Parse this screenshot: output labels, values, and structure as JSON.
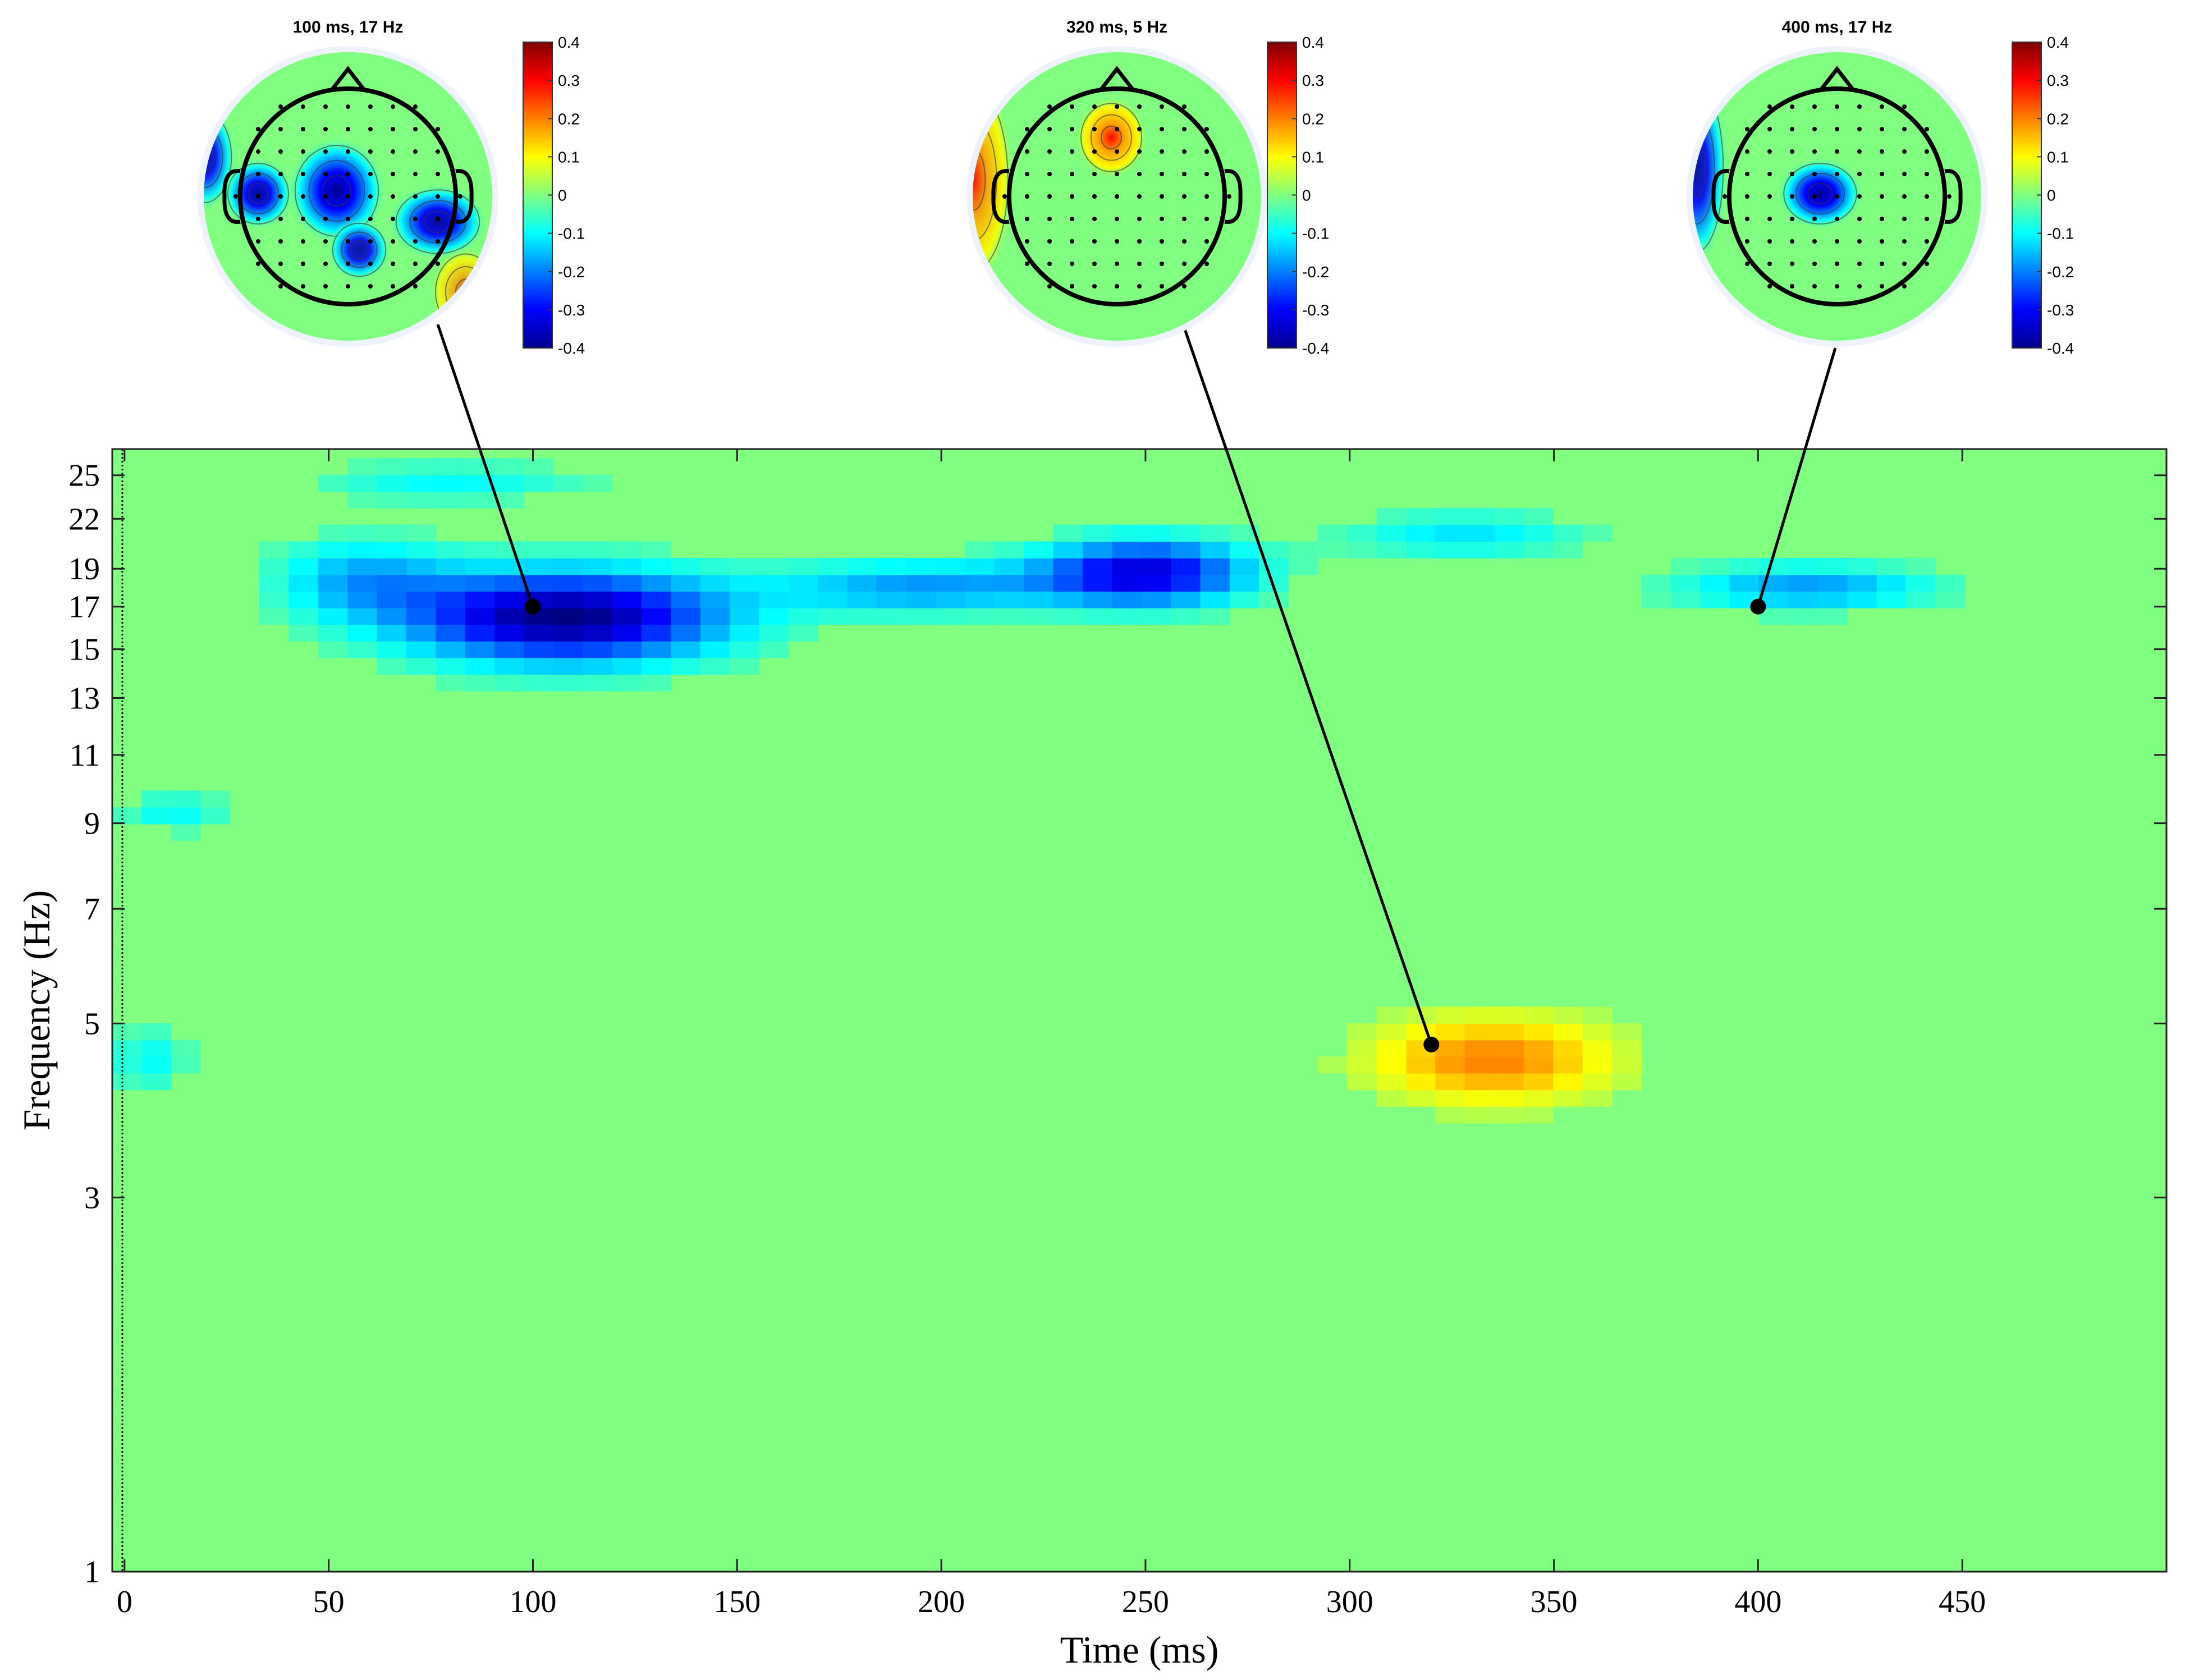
{
  "chart_data": {
    "type": "heatmap",
    "xlabel": "Time (ms)",
    "ylabel": "Frequency (Hz)",
    "xlim": [
      -3,
      500
    ],
    "ylim": [
      1,
      27
    ],
    "y_scale": "log",
    "x_ticks": [
      "0",
      "50",
      "100",
      "150",
      "200",
      "250",
      "300",
      "350",
      "400",
      "450"
    ],
    "y_ticks": [
      "1",
      "3",
      "5",
      "7",
      "9",
      "11",
      "13",
      "15",
      "17",
      "19",
      "22",
      "25"
    ],
    "baseline_color": "#80ff80",
    "clusters": [
      {
        "t_center": 108,
        "f_center": 16.5,
        "t_width": 40,
        "f_width": 0.14,
        "value": -0.4
      },
      {
        "t_center": 58,
        "f_center": 18.5,
        "t_width": 22,
        "f_width": 0.12,
        "value": -0.15
      },
      {
        "t_center": 195,
        "f_center": 18.0,
        "t_width": 35,
        "f_width": 0.08,
        "value": -0.18
      },
      {
        "t_center": 250,
        "f_center": 18.8,
        "t_width": 26,
        "f_width": 0.1,
        "value": -0.33
      },
      {
        "t_center": 328,
        "f_center": 21.0,
        "t_width": 30,
        "f_width": 0.07,
        "value": -0.12
      },
      {
        "t_center": 412,
        "f_center": 18.0,
        "t_width": 32,
        "f_width": 0.07,
        "value": -0.18
      },
      {
        "t_center": 80,
        "f_center": 24.5,
        "t_width": 35,
        "f_width": 0.06,
        "value": -0.1
      },
      {
        "t_center": 12,
        "f_center": 9.3,
        "t_width": 14,
        "f_width": 0.06,
        "value": -0.1
      },
      {
        "t_center": 6,
        "f_center": 4.5,
        "t_width": 10,
        "f_width": 0.1,
        "value": -0.1
      },
      {
        "t_center": 335,
        "f_center": 4.5,
        "t_width": 30,
        "f_width": 0.13,
        "value": 0.2
      }
    ],
    "markers": [
      {
        "t": 100,
        "f": 17
      },
      {
        "t": 320,
        "f": 4.7
      },
      {
        "t": 400,
        "f": 17
      }
    ],
    "topoplots": [
      {
        "title": "100 ms, 17 Hz",
        "colorbar_ticks": [
          "0.4",
          "0.3",
          "0.2",
          "0.1",
          "0",
          "-0.1",
          "-0.2",
          "-0.3",
          "-0.4"
        ],
        "clim": [
          -0.4,
          0.4
        ]
      },
      {
        "title": "320 ms, 5 Hz",
        "colorbar_ticks": [
          "0.4",
          "0.3",
          "0.2",
          "0.1",
          "0",
          "-0.1",
          "-0.2",
          "-0.3",
          "-0.4"
        ],
        "clim": [
          -0.4,
          0.4
        ]
      },
      {
        "title": "400 ms, 17 Hz",
        "colorbar_ticks": [
          "0.4",
          "0.3",
          "0.2",
          "0.1",
          "0",
          "-0.1",
          "-0.2",
          "-0.3",
          "-0.4"
        ],
        "clim": [
          -0.4,
          0.4
        ]
      }
    ]
  }
}
